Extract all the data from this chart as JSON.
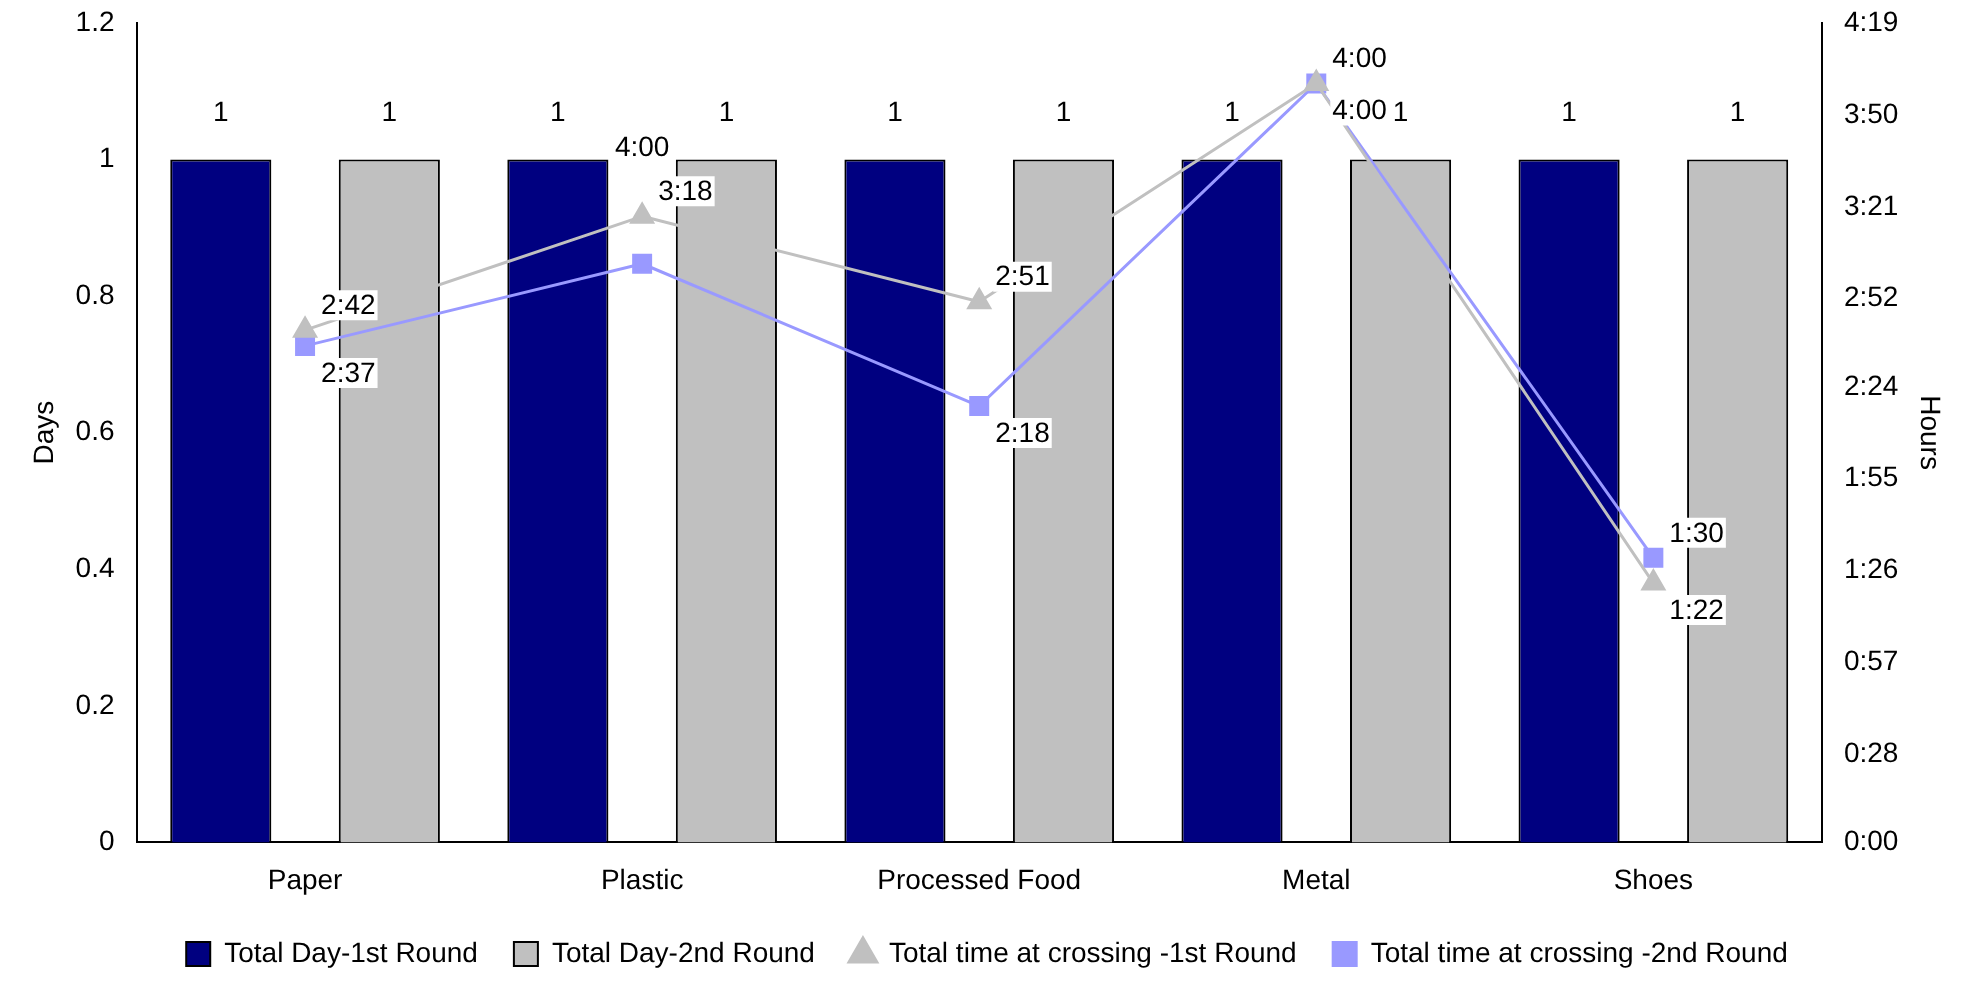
{
  "chart_data": {
    "type": "bar",
    "categories": [
      "Paper",
      "Plastic",
      "Processed Food",
      "Metal",
      "Shoes"
    ],
    "ylabel": "Days",
    "y2label": "Hours",
    "ylim": [
      0,
      1.2
    ],
    "yticks": [
      0,
      0.2,
      0.4,
      0.6,
      0.8,
      1,
      1.2
    ],
    "y2lim": [
      0,
      4.32
    ],
    "y2ticks": [
      {
        "value": 0,
        "label": "0:00"
      },
      {
        "value": 0.4667,
        "label": "0:28"
      },
      {
        "value": 0.95,
        "label": "0:57"
      },
      {
        "value": 1.4333,
        "label": "1:26"
      },
      {
        "value": 1.9167,
        "label": "1:55"
      },
      {
        "value": 2.4,
        "label": "2:24"
      },
      {
        "value": 2.8667,
        "label": "2:52"
      },
      {
        "value": 3.35,
        "label": "3:21"
      },
      {
        "value": 3.8333,
        "label": "3:50"
      },
      {
        "value": 4.3167,
        "label": "4:19"
      }
    ],
    "series": [
      {
        "name": "Total Day-1st Round",
        "color": "#000080",
        "values": [
          1,
          1,
          1,
          1,
          1
        ],
        "value_labels": [
          "1",
          "1",
          "1",
          "1",
          "1"
        ]
      },
      {
        "name": "Total Day-2nd Round",
        "color": "#c0c0c0",
        "values": [
          1,
          1,
          1,
          1,
          1
        ],
        "value_labels": [
          "1",
          "1",
          "1",
          "1",
          "1"
        ]
      },
      {
        "name": "Total time at crossing -1st Round",
        "type": "line",
        "axis": "y2",
        "marker": "triangle",
        "color": "#c0c0c0",
        "values": [
          2.7,
          3.3,
          2.85,
          4,
          1.367
        ],
        "value_labels": [
          "2:42",
          "3:18",
          "2:51",
          "4:00",
          "1:22"
        ]
      },
      {
        "name": "Total time at crossing -2nd Round",
        "type": "line",
        "axis": "y2",
        "marker": "square",
        "color": "#9999ff",
        "values": [
          2.617,
          3.05,
          2.3,
          4,
          1.5
        ],
        "value_labels": [
          "2:37",
          null,
          "2:18",
          "4:00",
          "1:30"
        ]
      }
    ],
    "annotations": [
      {
        "text": "4:00",
        "x": "Plastic"
      }
    ],
    "grid": false,
    "legend": "bottom"
  }
}
